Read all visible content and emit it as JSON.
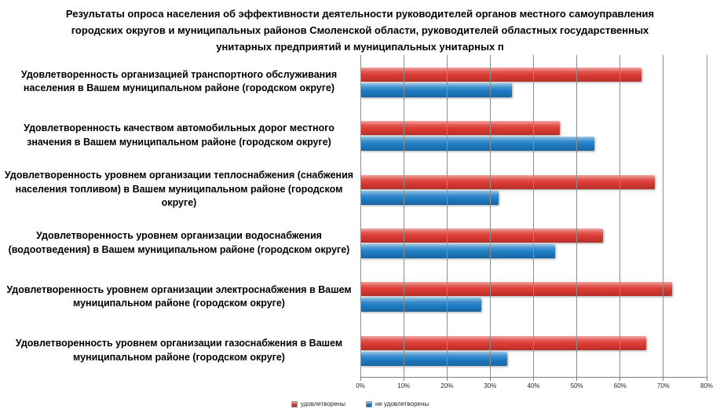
{
  "title": "Результаты опроса населения об эффективности деятельности руководителей органов местного самоуправления городских округов и муниципальных районов Смоленской области, руководителей областных государственных унитарных предприятий и муниципальных унитарных п",
  "chart_data": {
    "type": "bar",
    "orientation": "horizontal",
    "categories": [
      "Удовлетворенность организацией транспортного обслуживания населения в Вашем муниципальном районе (городском округе)",
      "Удовлетворенность качеством автомобильных дорог местного значения в Вашем муниципальном районе (городском округе)",
      "Удовлетворенность уровнем организации теплоснабжения (снабжения населения топливом) в Вашем муниципальном районе (городском округе)",
      "Удовлетворенность уровнем организации водоснабжения (водоотведения) в Вашем муниципальном районе (городском округе)",
      "Удовлетворенность уровнем организации электроснабжения в Вашем муниципальном районе (городском округе)",
      "Удовлетворенность уровнем организации газоснабжения в Вашем муниципальном районе (городском округе)"
    ],
    "series": [
      {
        "name": "удовлетворены",
        "color": "#dc3a32",
        "values": [
          65,
          46,
          68,
          56,
          72,
          66
        ]
      },
      {
        "name": "не удовлетворены",
        "color": "#1e7cc4",
        "values": [
          35,
          54,
          32,
          45,
          28,
          34
        ]
      }
    ],
    "xlim": [
      0,
      80
    ],
    "x_ticks": [
      "0%",
      "10%",
      "20%",
      "30%",
      "40%",
      "50%",
      "60%",
      "70%",
      "80%"
    ],
    "grid": true,
    "legend_position": "bottom",
    "ylabel": "",
    "xlabel": ""
  }
}
